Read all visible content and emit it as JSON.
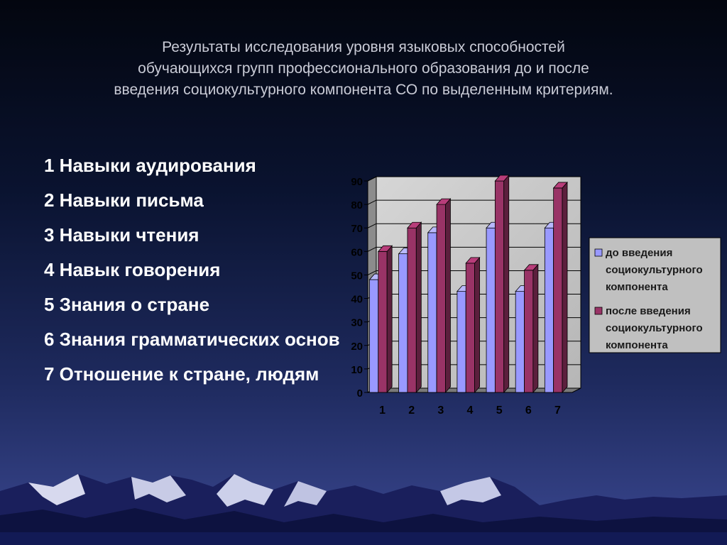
{
  "title": {
    "lines": [
      "Результаты исследования уровня языковых способностей",
      "обучающихся  групп профессионального образования  до  и после",
      "введения социокультурного компонента СО  по выделенным критериям."
    ]
  },
  "criteria": [
    "1 Навыки аудирования",
    "2 Навыки письма",
    "3 Навыки чтения",
    "4 Навык говорения",
    "5 Знания о стране",
    "6 Знания грамматических основ",
    "7 Отношение к стране, людям"
  ],
  "colors": {
    "series_before": "#9999ff",
    "series_after": "#993366",
    "plot_background": "#c0c0c0"
  },
  "chart_data": {
    "type": "bar",
    "categories": [
      "1",
      "2",
      "3",
      "4",
      "5",
      "6",
      "7"
    ],
    "ylim": [
      0,
      90
    ],
    "yticks": [
      0,
      10,
      20,
      30,
      40,
      50,
      60,
      70,
      80,
      90
    ],
    "grid": true,
    "legend_position": "right",
    "series": [
      {
        "name": "до введения социокультурного компонента",
        "values": [
          48,
          59,
          68,
          43,
          70,
          43,
          70
        ]
      },
      {
        "name": "после введения социокультурного компонента",
        "values": [
          60,
          70,
          80,
          55,
          90,
          52,
          87
        ]
      }
    ]
  }
}
